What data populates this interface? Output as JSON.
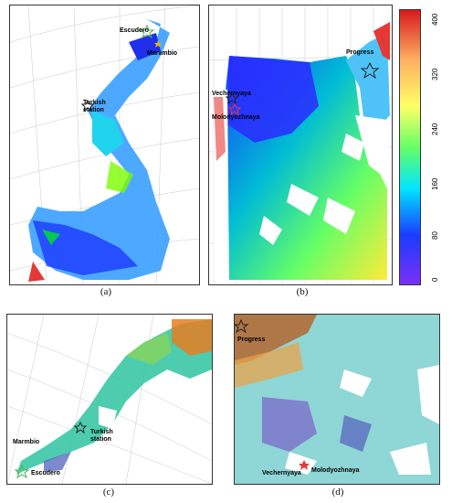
{
  "panels": {
    "a": {
      "caption": "(a)",
      "stations": [
        {
          "name": "Escudero",
          "color": "#4caf50"
        },
        {
          "name": "Marambio",
          "color": "#e8b400"
        },
        {
          "name": "Turkish station",
          "color": "#222222"
        }
      ]
    },
    "b": {
      "caption": "(b)",
      "stations": [
        {
          "name": "Progress",
          "color": "#222222"
        },
        {
          "name": "Vechernyaya",
          "color": "#222222"
        },
        {
          "name": "Molodyozhnaya",
          "color": "#e53935"
        }
      ]
    },
    "c": {
      "caption": "(c)",
      "stations": [
        {
          "name": "Marmbio"
        },
        {
          "name": "Turkish station"
        },
        {
          "name": "Escudero"
        }
      ]
    },
    "d": {
      "caption": "(d)",
      "stations": [
        {
          "name": "Progress"
        },
        {
          "name": "Vechernyaya"
        },
        {
          "name": "Molodyozhnaya"
        }
      ]
    }
  },
  "colorbar": {
    "ticks": [
      "400",
      "320",
      "240",
      "160",
      "80",
      "0"
    ],
    "colors": [
      "#d7191c",
      "#fdae61",
      "#ffff66",
      "#66ff66",
      "#00e5ff",
      "#1a3cff",
      "#7b2ff7"
    ]
  }
}
